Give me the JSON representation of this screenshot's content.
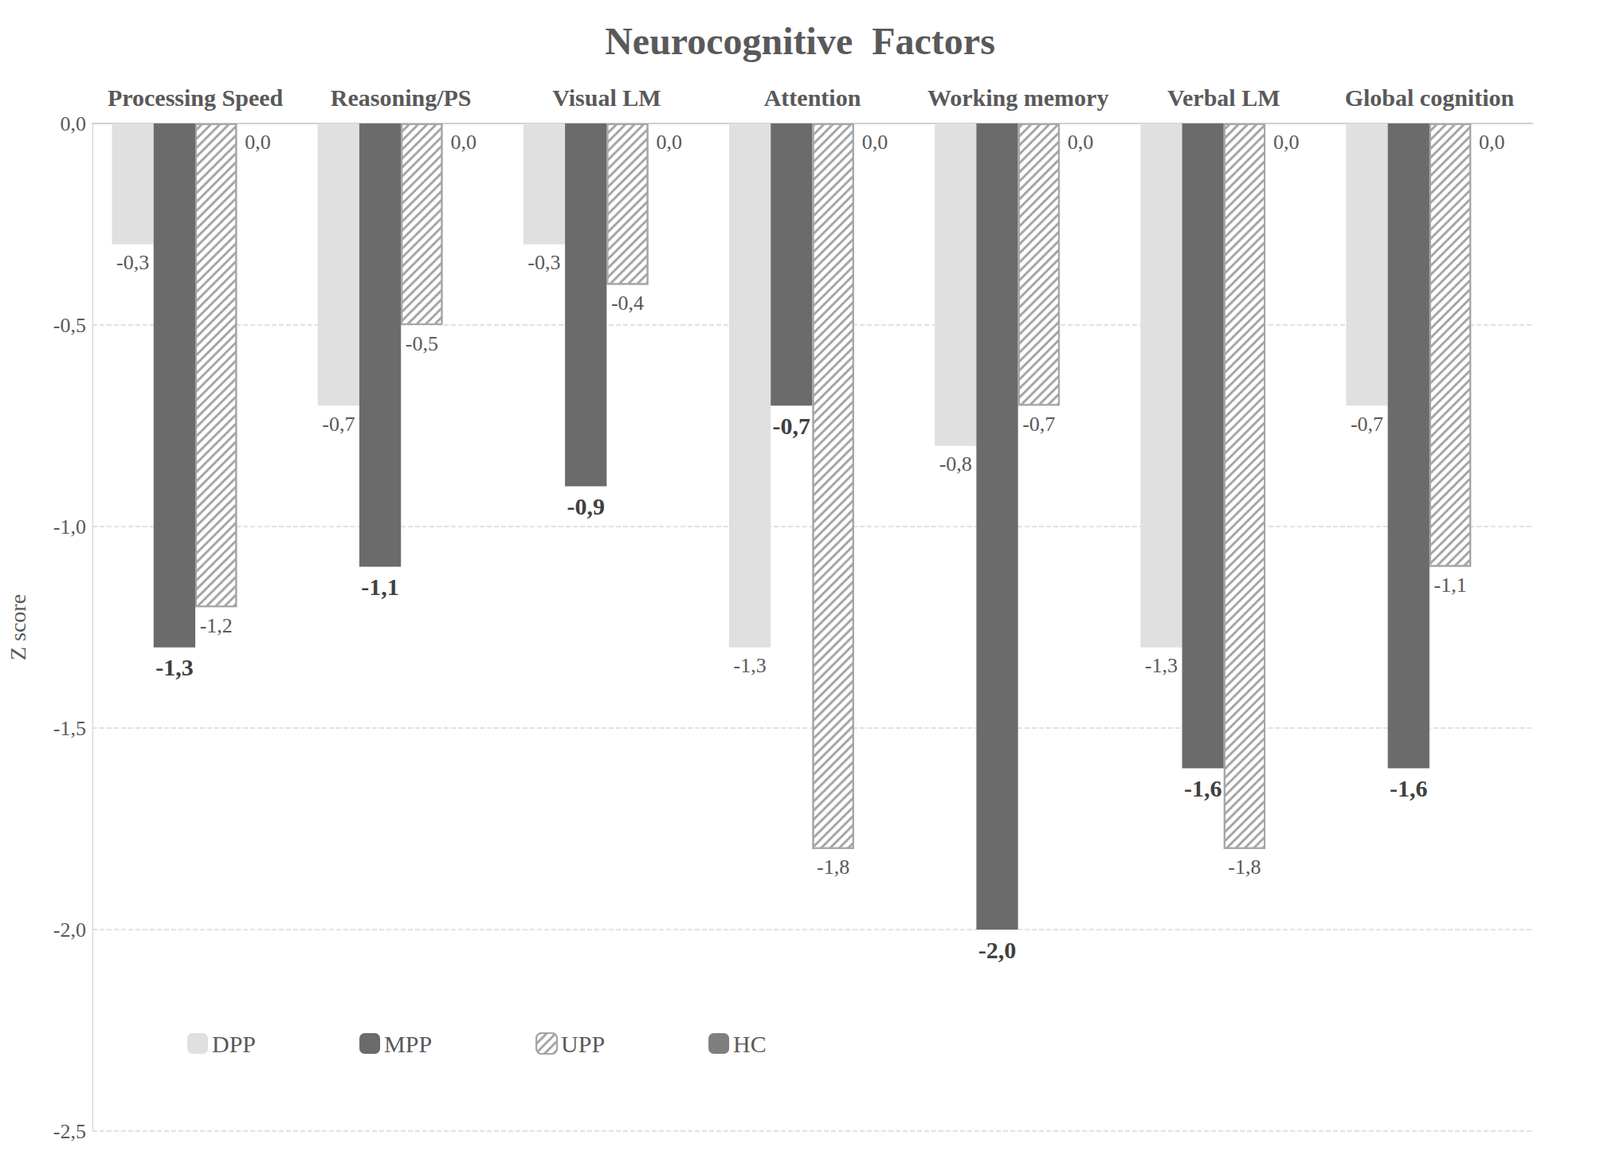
{
  "chart_data": {
    "type": "bar",
    "title": "Neurocognitive  Factors",
    "y_label": "Z score",
    "categories": [
      "Processing Speed",
      "Reasoning/PS",
      "Visual LM",
      "Attention",
      "Working memory",
      "Verbal LM",
      "Global cognition"
    ],
    "series": [
      {
        "name": "DPP",
        "color": "#e0e0e0",
        "values": [
          -0.3,
          -0.7,
          -0.3,
          -1.3,
          -0.8,
          -1.3,
          -0.7
        ],
        "value_labels": [
          "-0,3",
          "-0,7",
          "-0,3",
          "-1,3",
          "-0,8",
          "-1,3",
          "-0,7"
        ]
      },
      {
        "name": "MPP",
        "color": "#6b6b6b",
        "values": [
          -1.3,
          -1.1,
          -0.9,
          -0.7,
          -2.0,
          -1.6,
          -1.6
        ],
        "value_labels": [
          "-1,3",
          "-1,1",
          "-0,9",
          "-0,7",
          "-2,0",
          "-1,6",
          "-1,6"
        ]
      },
      {
        "name": "UPP",
        "color": "#a6a6a6",
        "values": [
          -1.2,
          -0.5,
          -0.4,
          -1.8,
          -0.7,
          -1.8,
          -1.1
        ],
        "value_labels": [
          "-1,2",
          "-0,5",
          "-0,4",
          "-1,8",
          "-0,7",
          "-1,8",
          "-1,1"
        ]
      },
      {
        "name": "HC",
        "color": "#7f7f7f",
        "values": [
          0,
          0,
          0,
          0,
          0,
          0,
          0
        ],
        "value_labels": [
          "0,0",
          "0,0",
          "0,0",
          "0,0",
          "0,0",
          "0,0",
          "0,0"
        ]
      }
    ],
    "ylim": [
      -2.5,
      0
    ],
    "yticks": [
      {
        "value": 0,
        "label": "0,0"
      },
      {
        "value": -0.5,
        "label": "-0,5"
      },
      {
        "value": -1,
        "label": "-1,0"
      },
      {
        "value": -1.5,
        "label": "-1,5"
      },
      {
        "value": -2,
        "label": "-2,0"
      },
      {
        "value": -2.5,
        "label": "-2,5"
      }
    ],
    "grid": true,
    "legend": "bottom",
    "data_labels": true
  }
}
